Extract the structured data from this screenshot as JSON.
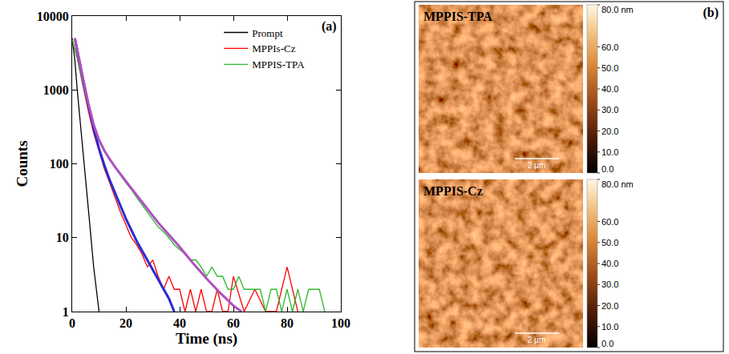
{
  "chart_data": {
    "type": "line",
    "label": "(a)",
    "x_label": "Time (ns)",
    "y_label": "Counts",
    "log": "y",
    "grid": false,
    "legend": "upper right",
    "xlim": [
      0,
      100
    ],
    "xticks": [
      0,
      20,
      40,
      60,
      80,
      100
    ],
    "ylim": [
      1,
      10000
    ],
    "yticks": [
      1,
      10,
      100,
      1000,
      10000
    ],
    "series": [
      {
        "name": "Prompt",
        "color": "#000000",
        "type": "line",
        "x": [
          0,
          1,
          2,
          3,
          4,
          5,
          6,
          7,
          8,
          9,
          10
        ],
        "values": [
          5000,
          2500,
          900,
          350,
          140,
          60,
          25,
          10,
          4,
          2,
          1
        ]
      },
      {
        "name": "MPPIs-Cz",
        "color": "#ff0000",
        "type": "line",
        "x": [
          0,
          2,
          4,
          6,
          8,
          10,
          12,
          14,
          16,
          18,
          20,
          22,
          24,
          26,
          28,
          30,
          32,
          34,
          36,
          38,
          40,
          42,
          44,
          46,
          48,
          50,
          52,
          54,
          56,
          58,
          60,
          64,
          68,
          72,
          76,
          80,
          84
        ],
        "values": [
          4800,
          2600,
          1150,
          520,
          260,
          150,
          85,
          55,
          34,
          22,
          15,
          10,
          8,
          6,
          4,
          5,
          3,
          2,
          3,
          2,
          2,
          1,
          2,
          1,
          2,
          1,
          1,
          2,
          1,
          1,
          3,
          1,
          2,
          1,
          1,
          4,
          1
        ]
      },
      {
        "name": "MPPIS-TPA",
        "color": "#2db82d",
        "type": "line",
        "x": [
          0,
          2,
          4,
          6,
          8,
          10,
          12,
          14,
          16,
          18,
          20,
          22,
          24,
          26,
          28,
          30,
          32,
          34,
          36,
          38,
          40,
          42,
          44,
          46,
          48,
          50,
          52,
          54,
          56,
          58,
          60,
          62,
          64,
          66,
          68,
          70,
          72,
          74,
          76,
          78,
          80,
          82,
          84,
          86,
          88,
          90,
          92,
          94
        ],
        "values": [
          4800,
          2600,
          1200,
          580,
          320,
          210,
          150,
          115,
          90,
          70,
          55,
          45,
          35,
          28,
          22,
          18,
          14,
          12,
          10,
          8,
          7,
          6,
          5,
          5,
          4,
          3,
          4,
          3,
          3,
          2,
          2,
          3,
          2,
          2,
          2,
          2,
          1,
          2,
          2,
          1,
          2,
          1,
          2,
          1,
          2,
          2,
          2,
          1
        ]
      },
      {
        "color": "#2b2bd6",
        "type": "line",
        "x": [
          1,
          2,
          4,
          6,
          8,
          10,
          12,
          14,
          16,
          18,
          20,
          24,
          28,
          32,
          36,
          38
        ],
        "values": [
          5000,
          3200,
          1400,
          620,
          300,
          160,
          95,
          60,
          40,
          27,
          18,
          9,
          5,
          2.8,
          1.5,
          1
        ]
      },
      {
        "color": "#b04fc0",
        "type": "line",
        "x": [
          1,
          2,
          4,
          6,
          8,
          10,
          12,
          14,
          16,
          20,
          24,
          28,
          32,
          36,
          40,
          45,
          50,
          55,
          60,
          63
        ],
        "values": [
          5000,
          3200,
          1450,
          660,
          340,
          210,
          150,
          115,
          90,
          58,
          38,
          25,
          16,
          11,
          7.5,
          4.5,
          2.8,
          1.8,
          1.2,
          1
        ]
      }
    ]
  },
  "afm": {
    "label": "(b)",
    "images": [
      {
        "title": "MPPIS-TPA",
        "scale_bar": "2 μm"
      },
      {
        "title": "MPPIS-Cz",
        "scale_bar": "2 μm"
      }
    ],
    "colorbar": {
      "range": [
        0,
        80
      ],
      "ticks": [
        {
          "value": 80,
          "label": "80.0 nm"
        },
        {
          "value": 60,
          "label": "60.0"
        },
        {
          "value": 50,
          "label": "50.0"
        },
        {
          "value": 40,
          "label": "40.0"
        },
        {
          "value": 30,
          "label": "30.0"
        },
        {
          "value": 20,
          "label": "20.0"
        },
        {
          "value": 10,
          "label": "10.0"
        },
        {
          "value": 0,
          "label": "0.0"
        }
      ]
    }
  }
}
